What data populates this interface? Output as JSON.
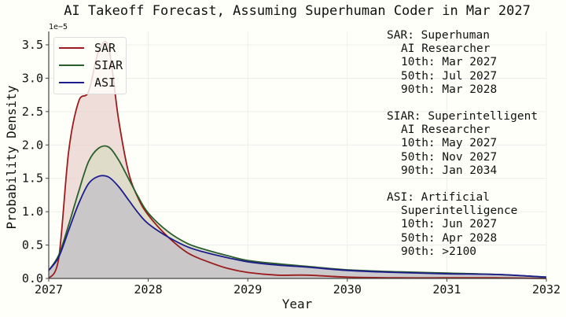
{
  "chart_data": {
    "type": "area",
    "title": "AI Takeoff Forecast, Assuming Superhuman Coder in Mar 2027",
    "xlabel": "Year",
    "ylabel": "Probability Density",
    "y_scale_label": "1e−5",
    "xlim": [
      2027,
      2032
    ],
    "ylim": [
      0,
      3.7
    ],
    "y_units": "1e-5",
    "x_ticks": [
      "2027",
      "2028",
      "2029",
      "2030",
      "2031",
      "2032"
    ],
    "y_ticks": [
      "0.0",
      "0.5",
      "1.0",
      "1.5",
      "2.0",
      "2.5",
      "3.0",
      "3.5"
    ],
    "grid": true,
    "legend_position": "upper left",
    "x": [
      2027.0,
      2027.1,
      2027.2,
      2027.3,
      2027.4,
      2027.5,
      2027.6,
      2027.7,
      2027.8,
      2027.9,
      2028.0,
      2028.2,
      2028.4,
      2028.6,
      2028.8,
      2029.0,
      2029.3,
      2029.6,
      2030.0,
      2030.5,
      2031.0,
      2031.5,
      2032.0
    ],
    "series": [
      {
        "name": "SAR",
        "color": "#9b1c1c",
        "fill": "#e8d2cc",
        "values": [
          0.0,
          0.3,
          1.9,
          2.65,
          2.8,
          3.4,
          3.47,
          2.4,
          1.6,
          1.2,
          0.95,
          0.62,
          0.38,
          0.25,
          0.15,
          0.09,
          0.05,
          0.05,
          0.02,
          0.01,
          0.01,
          0.01,
          0.0
        ]
      },
      {
        "name": "SIAR",
        "color": "#2a5e2a",
        "fill": "#d9dcc6",
        "values": [
          0.12,
          0.35,
          0.8,
          1.3,
          1.75,
          1.95,
          1.97,
          1.78,
          1.5,
          1.22,
          0.98,
          0.7,
          0.52,
          0.42,
          0.34,
          0.27,
          0.22,
          0.18,
          0.13,
          0.1,
          0.08,
          0.06,
          0.02
        ]
      },
      {
        "name": "ASI",
        "color": "#1c1c8c",
        "fill": "#c3bfc8",
        "values": [
          0.12,
          0.32,
          0.72,
          1.12,
          1.42,
          1.53,
          1.52,
          1.38,
          1.18,
          0.98,
          0.82,
          0.62,
          0.47,
          0.38,
          0.31,
          0.25,
          0.2,
          0.17,
          0.12,
          0.09,
          0.07,
          0.06,
          0.02
        ]
      }
    ],
    "annotations": [
      {
        "label": "SAR: Superhuman",
        "sublabel": "AI Researcher",
        "p10": "10th: Mar 2027",
        "p50": "50th: Jul 2027",
        "p90": "90th: Mar 2028"
      },
      {
        "label": "SIAR: Superintelligent",
        "sublabel": "AI Researcher",
        "p10": "10th: May 2027",
        "p50": "50th: Nov 2027",
        "p90": "90th: Jan 2034"
      },
      {
        "label": "ASI: Artificial",
        "sublabel": "Superintelligence",
        "p10": "10th: Jun 2027",
        "p50": "50th: Apr 2028",
        "p90": "90th: >2100"
      }
    ]
  }
}
